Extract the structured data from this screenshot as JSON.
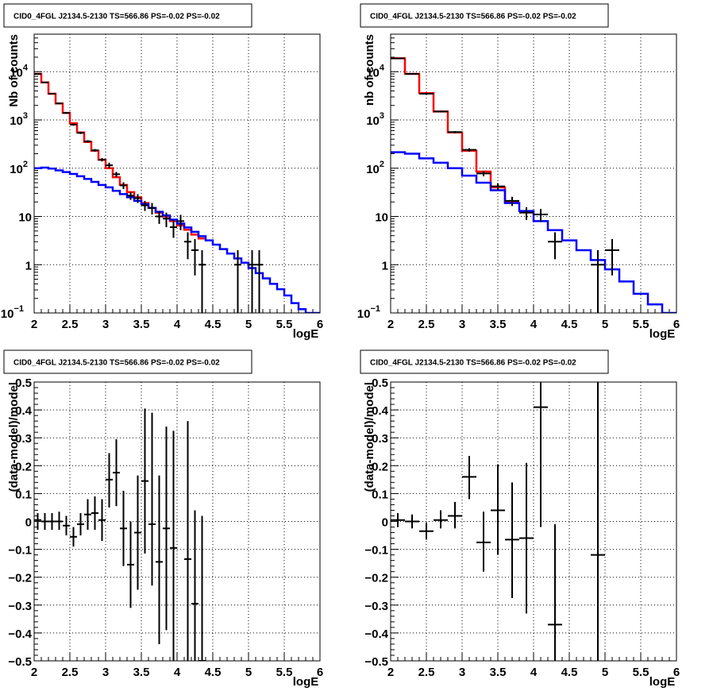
{
  "chart_data": [
    {
      "type": "line",
      "title": "CID0_4FGL J2134.5-2130 TS=566.86 PS=-0.02 PS=-0.02",
      "xlabel": "logE",
      "ylabel": "Nb of counts",
      "xlim": [
        2,
        6
      ],
      "ylim": [
        0.1,
        60000
      ],
      "yscale": "log",
      "grid": true,
      "xticks": [
        "2",
        "2.5",
        "3",
        "3.5",
        "4",
        "4.5",
        "5",
        "5.5",
        "6"
      ],
      "yticks": [
        {
          "v": 0.1,
          "label": "10",
          "exp": "−1"
        },
        {
          "v": 1,
          "label": "1"
        },
        {
          "v": 10,
          "label": "10"
        },
        {
          "v": 100,
          "label": "10",
          "exp": "2"
        },
        {
          "v": 1000,
          "label": "10",
          "exp": "3"
        },
        {
          "v": 10000,
          "label": "10",
          "exp": "4"
        }
      ],
      "binwidth": 0.1,
      "series": [
        {
          "color": "#ff0000",
          "style": "step",
          "values": [
            9000,
            6000,
            3500,
            2200,
            1400,
            850,
            550,
            350,
            230,
            150,
            100,
            65,
            45,
            32,
            25,
            19,
            15,
            12,
            10,
            8,
            6.5,
            5.3,
            4.2,
            3.5
          ]
        },
        {
          "color": "#0000ff",
          "style": "step",
          "values": [
            100,
            103,
            98,
            90,
            83,
            76,
            68,
            60,
            52,
            45,
            40,
            34,
            29,
            25,
            21,
            18,
            15,
            12.5,
            10.5,
            8.6,
            7.1,
            5.9,
            4.8,
            3.9,
            3.2,
            2.6,
            2.1,
            1.7,
            1.35,
            1.1,
            0.85,
            0.67,
            0.52,
            0.4,
            0.31,
            0.23,
            0.16,
            0.12,
            0.1,
            0.1
          ]
        },
        {
          "color": "#000000",
          "style": "errorbar",
          "points": [
            {
              "x": 2.05,
              "y": 9000,
              "ylo": 8800,
              "yhi": 9200
            },
            {
              "x": 2.15,
              "y": 6000,
              "ylo": 5850,
              "yhi": 6150
            },
            {
              "x": 2.25,
              "y": 3500,
              "ylo": 3400,
              "yhi": 3600
            },
            {
              "x": 2.35,
              "y": 2200,
              "ylo": 2120,
              "yhi": 2280
            },
            {
              "x": 2.45,
              "y": 1400,
              "ylo": 1340,
              "yhi": 1460
            },
            {
              "x": 2.55,
              "y": 800,
              "ylo": 760,
              "yhi": 840
            },
            {
              "x": 2.65,
              "y": 540,
              "ylo": 510,
              "yhi": 570
            },
            {
              "x": 2.75,
              "y": 360,
              "ylo": 340,
              "yhi": 380
            },
            {
              "x": 2.85,
              "y": 235,
              "ylo": 220,
              "yhi": 250
            },
            {
              "x": 2.95,
              "y": 150,
              "ylo": 138,
              "yhi": 162
            },
            {
              "x": 3.05,
              "y": 115,
              "ylo": 100,
              "yhi": 130
            },
            {
              "x": 3.15,
              "y": 75,
              "ylo": 66,
              "yhi": 84
            },
            {
              "x": 3.25,
              "y": 44,
              "ylo": 37,
              "yhi": 51
            },
            {
              "x": 3.35,
              "y": 27,
              "ylo": 22,
              "yhi": 32
            },
            {
              "x": 3.45,
              "y": 24,
              "ylo": 19,
              "yhi": 29
            },
            {
              "x": 3.55,
              "y": 17,
              "ylo": 13,
              "yhi": 21
            },
            {
              "x": 3.65,
              "y": 15,
              "ylo": 11,
              "yhi": 19
            },
            {
              "x": 3.75,
              "y": 10,
              "ylo": 7,
              "yhi": 13
            },
            {
              "x": 3.85,
              "y": 9,
              "ylo": 6,
              "yhi": 12
            },
            {
              "x": 3.95,
              "y": 6,
              "ylo": 3.6,
              "yhi": 8.4
            },
            {
              "x": 4.05,
              "y": 8,
              "ylo": 5.2,
              "yhi": 10.8
            },
            {
              "x": 4.15,
              "y": 3,
              "ylo": 1.3,
              "yhi": 4.7
            },
            {
              "x": 4.25,
              "y": 2,
              "ylo": 0.6,
              "yhi": 3.4
            },
            {
              "x": 4.35,
              "y": 1,
              "ylo": 0.1,
              "yhi": 2
            },
            {
              "x": 4.85,
              "y": 1,
              "ylo": 0.1,
              "yhi": 2
            },
            {
              "x": 5.05,
              "y": 1,
              "ylo": 0.1,
              "yhi": 2
            },
            {
              "x": 5.15,
              "y": 1,
              "ylo": 0.1,
              "yhi": 2
            }
          ]
        }
      ]
    },
    {
      "type": "line",
      "title": "CID0_4FGL J2134.5-2130 TS=566.86 PS=-0.02 PS=-0.02",
      "xlabel": "logE",
      "ylabel": "nb of counts",
      "xlim": [
        2,
        6
      ],
      "ylim": [
        0.1,
        60000
      ],
      "yscale": "log",
      "grid": true,
      "xticks": [
        "2",
        "2.5",
        "3",
        "3.5",
        "4",
        "4.5",
        "5",
        "5.5",
        "6"
      ],
      "yticks": [
        {
          "v": 0.1,
          "label": "10",
          "exp": "−1"
        },
        {
          "v": 1,
          "label": "1"
        },
        {
          "v": 10,
          "label": "10"
        },
        {
          "v": 100,
          "label": "10",
          "exp": "2"
        },
        {
          "v": 1000,
          "label": "10",
          "exp": "3"
        },
        {
          "v": 10000,
          "label": "10",
          "exp": "4"
        }
      ],
      "binwidth": 0.2,
      "series": [
        {
          "color": "#ff0000",
          "style": "step",
          "values": [
            19000,
            9000,
            3600,
            1500,
            550,
            230,
            85,
            40,
            20
          ]
        },
        {
          "color": "#0000ff",
          "style": "step",
          "values": [
            215,
            200,
            160,
            130,
            100,
            70,
            50,
            35,
            19,
            13,
            8,
            5.2,
            3.2,
            2,
            1.25,
            0.8,
            0.45,
            0.25,
            0.15,
            0.1
          ]
        },
        {
          "color": "#000000",
          "style": "errorbar",
          "points": [
            {
              "x": 2.1,
              "y": 18900,
              "ylo": 18700,
              "yhi": 19100
            },
            {
              "x": 2.3,
              "y": 9000,
              "ylo": 8850,
              "yhi": 9150
            },
            {
              "x": 2.5,
              "y": 3500,
              "ylo": 3400,
              "yhi": 3600
            },
            {
              "x": 2.7,
              "y": 1500,
              "ylo": 1440,
              "yhi": 1560
            },
            {
              "x": 2.9,
              "y": 560,
              "ylo": 530,
              "yhi": 590
            },
            {
              "x": 3.1,
              "y": 240,
              "ylo": 220,
              "yhi": 260
            },
            {
              "x": 3.3,
              "y": 78,
              "ylo": 68,
              "yhi": 88
            },
            {
              "x": 3.5,
              "y": 42,
              "ylo": 35,
              "yhi": 49
            },
            {
              "x": 3.7,
              "y": 21,
              "ylo": 16.5,
              "yhi": 25.5
            },
            {
              "x": 3.9,
              "y": 12,
              "ylo": 8.5,
              "yhi": 15.5
            },
            {
              "x": 4.1,
              "y": 11,
              "ylo": 7.7,
              "yhi": 14.3
            },
            {
              "x": 4.3,
              "y": 3,
              "ylo": 1.3,
              "yhi": 4.7
            },
            {
              "x": 4.9,
              "y": 1,
              "ylo": 0.1,
              "yhi": 2
            },
            {
              "x": 5.1,
              "y": 2,
              "ylo": 0.6,
              "yhi": 3.4
            }
          ]
        }
      ]
    },
    {
      "type": "scatter",
      "title": "CID0_4FGL J2134.5-2130 TS=566.86 PS=-0.02 PS=-0.02",
      "xlabel": "logE",
      "ylabel": "(data-model)/model",
      "xlim": [
        2,
        6
      ],
      "ylim": [
        -0.5,
        0.5
      ],
      "yscale": "linear",
      "grid": true,
      "xticks": [
        "2",
        "2.5",
        "3",
        "3.5",
        "4",
        "4.5",
        "5",
        "5.5",
        "6"
      ],
      "yticks": [
        {
          "v": -0.5,
          "label": "−0.5"
        },
        {
          "v": -0.4,
          "label": "−0.4"
        },
        {
          "v": -0.3,
          "label": "−0.3"
        },
        {
          "v": -0.2,
          "label": "−0.2"
        },
        {
          "v": -0.1,
          "label": "−0.1"
        },
        {
          "v": 0,
          "label": "0"
        },
        {
          "v": 0.1,
          "label": "0.1"
        },
        {
          "v": 0.2,
          "label": "0.2"
        },
        {
          "v": 0.3,
          "label": "0.3"
        },
        {
          "v": 0.4,
          "label": "0.4"
        },
        {
          "v": 0.5,
          "label": "0.5"
        }
      ],
      "binwidth": 0.1,
      "series": [
        {
          "color": "#000000",
          "style": "errorbar",
          "points": [
            {
              "x": 2.05,
              "y": 0.005,
              "ylo": -0.03,
              "yhi": 0.03
            },
            {
              "x": 2.15,
              "y": 0.0,
              "ylo": -0.03,
              "yhi": 0.03
            },
            {
              "x": 2.25,
              "y": 0.0,
              "ylo": -0.03,
              "yhi": 0.03
            },
            {
              "x": 2.35,
              "y": 0.0,
              "ylo": -0.03,
              "yhi": 0.035
            },
            {
              "x": 2.45,
              "y": -0.015,
              "ylo": -0.05,
              "yhi": 0.02
            },
            {
              "x": 2.55,
              "y": -0.055,
              "ylo": -0.09,
              "yhi": -0.02
            },
            {
              "x": 2.65,
              "y": -0.01,
              "ylo": -0.05,
              "yhi": 0.03
            },
            {
              "x": 2.75,
              "y": 0.025,
              "ylo": -0.03,
              "yhi": 0.08
            },
            {
              "x": 2.85,
              "y": 0.03,
              "ylo": -0.03,
              "yhi": 0.09
            },
            {
              "x": 2.95,
              "y": 0.005,
              "ylo": -0.07,
              "yhi": 0.08
            },
            {
              "x": 3.05,
              "y": 0.15,
              "ylo": 0.05,
              "yhi": 0.245
            },
            {
              "x": 3.15,
              "y": 0.175,
              "ylo": 0.055,
              "yhi": 0.295
            },
            {
              "x": 3.25,
              "y": -0.025,
              "ylo": -0.16,
              "yhi": 0.11
            },
            {
              "x": 3.35,
              "y": -0.155,
              "ylo": -0.31,
              "yhi": 0.0
            },
            {
              "x": 3.45,
              "y": -0.04,
              "ylo": -0.245,
              "yhi": 0.165
            },
            {
              "x": 3.55,
              "y": 0.145,
              "ylo": -0.115,
              "yhi": 0.405
            },
            {
              "x": 3.65,
              "y": -0.01,
              "ylo": -0.23,
              "yhi": 0.39
            },
            {
              "x": 3.75,
              "y": -0.145,
              "ylo": -0.44,
              "yhi": 0.165
            },
            {
              "x": 3.85,
              "y": -0.025,
              "ylo": -0.39,
              "yhi": 0.34
            },
            {
              "x": 3.95,
              "y": -0.095,
              "ylo": -0.5,
              "yhi": 0.325
            },
            {
              "x": 4.15,
              "y": -0.135,
              "ylo": -0.5,
              "yhi": 0.36
            },
            {
              "x": 4.25,
              "y": -0.295,
              "ylo": -0.5,
              "yhi": 0.04
            },
            {
              "x": 4.35,
              "y": -0.5,
              "ylo": -0.5,
              "yhi": 0.02
            }
          ]
        }
      ]
    },
    {
      "type": "scatter",
      "title": "CID0_4FGL J2134.5-2130 TS=566.86 PS=-0.02 PS=-0.02",
      "xlabel": "logE",
      "ylabel": "(data-model)/model",
      "xlim": [
        2,
        6
      ],
      "ylim": [
        -0.5,
        0.5
      ],
      "yscale": "linear",
      "grid": true,
      "xticks": [
        "2",
        "2.5",
        "3",
        "3.5",
        "4",
        "4.5",
        "5",
        "5.5",
        "6"
      ],
      "yticks": [
        {
          "v": -0.5,
          "label": "−0.5"
        },
        {
          "v": -0.4,
          "label": "−0.4"
        },
        {
          "v": -0.3,
          "label": "−0.3"
        },
        {
          "v": -0.2,
          "label": "−0.2"
        },
        {
          "v": -0.1,
          "label": "−0.1"
        },
        {
          "v": 0,
          "label": "0"
        },
        {
          "v": 0.1,
          "label": "0.1"
        },
        {
          "v": 0.2,
          "label": "0.2"
        },
        {
          "v": 0.3,
          "label": "0.3"
        },
        {
          "v": 0.4,
          "label": "0.4"
        },
        {
          "v": 0.5,
          "label": "0.5"
        }
      ],
      "binwidth": 0.2,
      "series": [
        {
          "color": "#000000",
          "style": "errorbar",
          "points": [
            {
              "x": 2.1,
              "y": 0.005,
              "ylo": -0.02,
              "yhi": 0.03
            },
            {
              "x": 2.3,
              "y": 0.0,
              "ylo": -0.025,
              "yhi": 0.025
            },
            {
              "x": 2.5,
              "y": -0.035,
              "ylo": -0.065,
              "yhi": -0.005
            },
            {
              "x": 2.7,
              "y": 0.005,
              "ylo": -0.025,
              "yhi": 0.04
            },
            {
              "x": 2.9,
              "y": 0.02,
              "ylo": -0.025,
              "yhi": 0.07
            },
            {
              "x": 3.1,
              "y": 0.16,
              "ylo": 0.08,
              "yhi": 0.235
            },
            {
              "x": 3.3,
              "y": -0.075,
              "ylo": -0.18,
              "yhi": 0.035
            },
            {
              "x": 3.5,
              "y": 0.04,
              "ylo": -0.12,
              "yhi": 0.205
            },
            {
              "x": 3.7,
              "y": -0.065,
              "ylo": -0.275,
              "yhi": 0.14
            },
            {
              "x": 3.9,
              "y": -0.06,
              "ylo": -0.33,
              "yhi": 0.21
            },
            {
              "x": 4.1,
              "y": 0.41,
              "ylo": -0.02,
              "yhi": 0.5
            },
            {
              "x": 4.3,
              "y": -0.37,
              "ylo": -0.5,
              "yhi": -0.01
            },
            {
              "x": 4.9,
              "y": -0.12,
              "ylo": -0.5,
              "yhi": 0.5
            }
          ]
        }
      ]
    }
  ]
}
